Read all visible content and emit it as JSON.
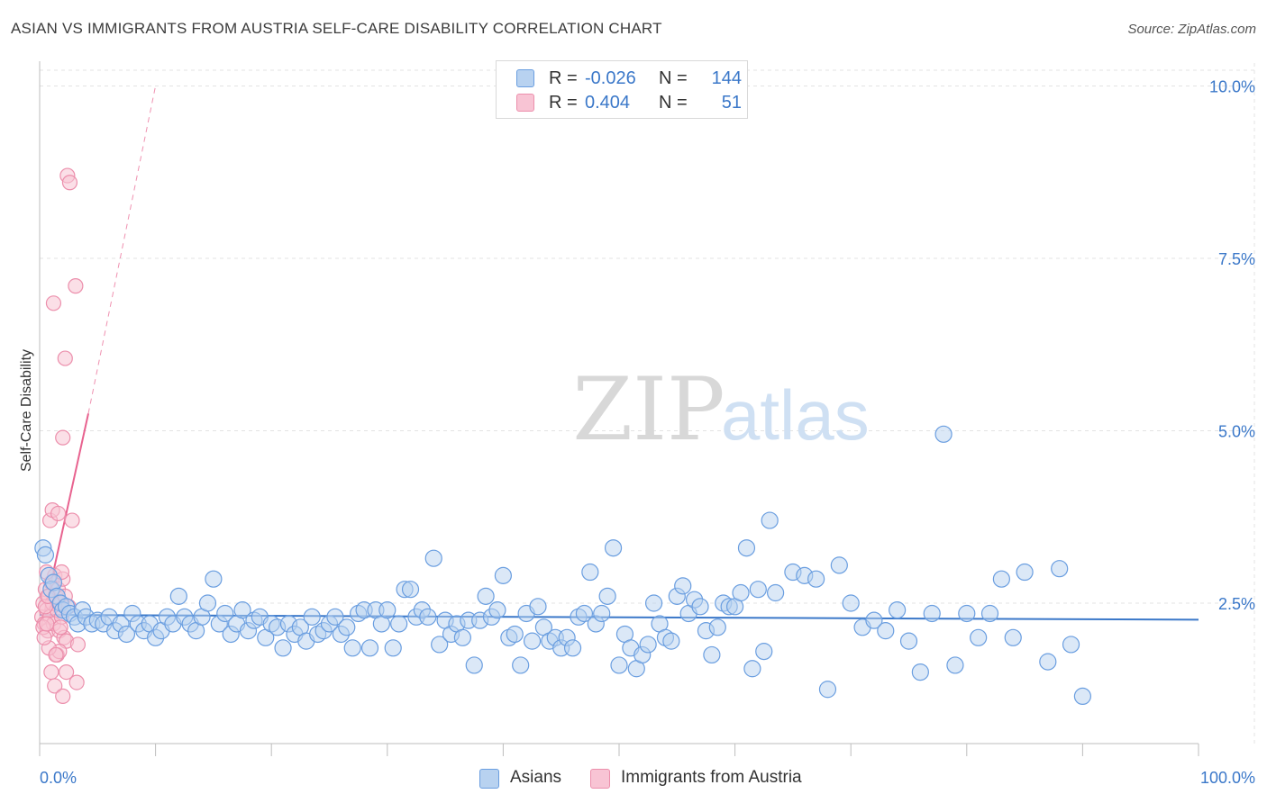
{
  "title": "ASIAN VS IMMIGRANTS FROM AUSTRIA SELF-CARE DISABILITY CORRELATION CHART",
  "source": "Source: ZipAtlas.com",
  "legend": {
    "r_label": "R =",
    "n_label": "N =",
    "rows": [
      {
        "r": "-0.026",
        "n": "144",
        "swatch_fill": "#b8d2f0",
        "swatch_stroke": "#6a9ee0"
      },
      {
        "r": "0.404",
        "n": "51",
        "swatch_fill": "#f8c4d4",
        "swatch_stroke": "#ec8fac"
      }
    ]
  },
  "bottom_legend": [
    "Asians",
    "Immigrants from Austria"
  ],
  "colors": {
    "blue": "#3b78c9",
    "blue_fill": "#b8d2f0",
    "blue_stroke": "#6a9ee0",
    "pink": "#e8628f",
    "pink_fill": "#f8c4d4",
    "pink_stroke": "#ec8fac",
    "grid": "#e3e3e3",
    "axis_label": "#3b78c9"
  },
  "chart_data": {
    "type": "scatter",
    "title": "ASIAN VS IMMIGRANTS FROM AUSTRIA SELF-CARE DISABILITY CORRELATION CHART",
    "xlabel": "",
    "ylabel": "Self-Care Disability",
    "xlim": [
      0,
      100
    ],
    "ylim": [
      0,
      10.5
    ],
    "x_tick_labels": [
      "0.0%",
      "100.0%"
    ],
    "y_ticks": [
      2.5,
      5.0,
      7.5,
      10.0
    ],
    "y_tick_labels": [
      "2.5%",
      "5.0%",
      "7.5%",
      "10.0%"
    ],
    "grid": true,
    "legend_position": "top-center",
    "watermark": "ZIPatlas",
    "series": [
      {
        "name": "Asians",
        "color": "#6a9ee0",
        "trend": {
          "x": [
            0,
            100
          ],
          "y": [
            2.33,
            2.26
          ],
          "style": "solid"
        },
        "points": [
          [
            0.3,
            3.3
          ],
          [
            0.5,
            3.2
          ],
          [
            0.8,
            2.9
          ],
          [
            1.0,
            2.7
          ],
          [
            1.2,
            2.8
          ],
          [
            1.5,
            2.6
          ],
          [
            1.8,
            2.5
          ],
          [
            2.0,
            2.4
          ],
          [
            2.3,
            2.45
          ],
          [
            2.6,
            2.35
          ],
          [
            3.0,
            2.3
          ],
          [
            3.3,
            2.2
          ],
          [
            3.7,
            2.4
          ],
          [
            4.0,
            2.3
          ],
          [
            4.5,
            2.2
          ],
          [
            5.0,
            2.25
          ],
          [
            5.5,
            2.2
          ],
          [
            6.0,
            2.3
          ],
          [
            6.5,
            2.1
          ],
          [
            7.0,
            2.2
          ],
          [
            7.5,
            2.05
          ],
          [
            8.0,
            2.35
          ],
          [
            8.5,
            2.2
          ],
          [
            9.0,
            2.1
          ],
          [
            9.5,
            2.2
          ],
          [
            10.0,
            2.0
          ],
          [
            10.5,
            2.1
          ],
          [
            11.0,
            2.3
          ],
          [
            11.5,
            2.2
          ],
          [
            12.0,
            2.6
          ],
          [
            12.5,
            2.3
          ],
          [
            13.0,
            2.2
          ],
          [
            13.5,
            2.1
          ],
          [
            14.0,
            2.3
          ],
          [
            14.5,
            2.5
          ],
          [
            15.0,
            2.85
          ],
          [
            15.5,
            2.2
          ],
          [
            16.0,
            2.35
          ],
          [
            16.5,
            2.05
          ],
          [
            17.0,
            2.2
          ],
          [
            17.5,
            2.4
          ],
          [
            18.0,
            2.1
          ],
          [
            18.5,
            2.25
          ],
          [
            19.0,
            2.3
          ],
          [
            19.5,
            2.0
          ],
          [
            20.0,
            2.2
          ],
          [
            20.5,
            2.15
          ],
          [
            21.0,
            1.85
          ],
          [
            21.5,
            2.2
          ],
          [
            22.0,
            2.05
          ],
          [
            22.5,
            2.15
          ],
          [
            23.0,
            1.95
          ],
          [
            23.5,
            2.3
          ],
          [
            24.0,
            2.05
          ],
          [
            24.5,
            2.1
          ],
          [
            25.0,
            2.2
          ],
          [
            25.5,
            2.3
          ],
          [
            26.0,
            2.05
          ],
          [
            26.5,
            2.15
          ],
          [
            27.0,
            1.85
          ],
          [
            27.5,
            2.35
          ],
          [
            28.0,
            2.4
          ],
          [
            28.5,
            1.85
          ],
          [
            29.0,
            2.4
          ],
          [
            29.5,
            2.2
          ],
          [
            30.0,
            2.4
          ],
          [
            30.5,
            1.85
          ],
          [
            31.0,
            2.2
          ],
          [
            31.5,
            2.7
          ],
          [
            32.0,
            2.7
          ],
          [
            32.5,
            2.3
          ],
          [
            33.0,
            2.4
          ],
          [
            33.5,
            2.3
          ],
          [
            34.0,
            3.15
          ],
          [
            34.5,
            1.9
          ],
          [
            35.0,
            2.25
          ],
          [
            35.5,
            2.05
          ],
          [
            36.0,
            2.2
          ],
          [
            36.5,
            2.0
          ],
          [
            37.0,
            2.25
          ],
          [
            37.5,
            1.6
          ],
          [
            38.0,
            2.25
          ],
          [
            38.5,
            2.6
          ],
          [
            39.0,
            2.3
          ],
          [
            39.5,
            2.4
          ],
          [
            40.0,
            2.9
          ],
          [
            40.5,
            2.0
          ],
          [
            41.0,
            2.05
          ],
          [
            41.5,
            1.6
          ],
          [
            42.0,
            2.35
          ],
          [
            42.5,
            1.95
          ],
          [
            43.0,
            2.45
          ],
          [
            43.5,
            2.15
          ],
          [
            44.0,
            1.95
          ],
          [
            44.5,
            2.0
          ],
          [
            45.0,
            1.85
          ],
          [
            45.5,
            2.0
          ],
          [
            46.0,
            1.85
          ],
          [
            46.5,
            2.3
          ],
          [
            47.0,
            2.35
          ],
          [
            47.5,
            2.95
          ],
          [
            48.0,
            2.2
          ],
          [
            48.5,
            2.35
          ],
          [
            49.0,
            2.6
          ],
          [
            49.5,
            3.3
          ],
          [
            50.0,
            1.6
          ],
          [
            50.5,
            2.05
          ],
          [
            51.0,
            1.85
          ],
          [
            51.5,
            1.55
          ],
          [
            52.0,
            1.75
          ],
          [
            52.5,
            1.9
          ],
          [
            53.0,
            2.5
          ],
          [
            53.5,
            2.2
          ],
          [
            54.0,
            2.0
          ],
          [
            54.5,
            1.95
          ],
          [
            55.0,
            2.6
          ],
          [
            55.5,
            2.75
          ],
          [
            56.0,
            2.35
          ],
          [
            56.5,
            2.55
          ],
          [
            57.0,
            2.45
          ],
          [
            57.5,
            2.1
          ],
          [
            58.0,
            1.75
          ],
          [
            58.5,
            2.15
          ],
          [
            59.0,
            2.5
          ],
          [
            59.5,
            2.45
          ],
          [
            60.0,
            2.45
          ],
          [
            60.5,
            2.65
          ],
          [
            61.0,
            3.3
          ],
          [
            61.5,
            1.55
          ],
          [
            62.0,
            2.7
          ],
          [
            62.5,
            1.8
          ],
          [
            63.0,
            3.7
          ],
          [
            63.5,
            2.65
          ],
          [
            65.0,
            2.95
          ],
          [
            66.0,
            2.9
          ],
          [
            67.0,
            2.85
          ],
          [
            68.0,
            1.25
          ],
          [
            69.0,
            3.05
          ],
          [
            70.0,
            2.5
          ],
          [
            71.0,
            2.15
          ],
          [
            72.0,
            2.25
          ],
          [
            73.0,
            2.1
          ],
          [
            74.0,
            2.4
          ],
          [
            75.0,
            1.95
          ],
          [
            76.0,
            1.5
          ],
          [
            77.0,
            2.35
          ],
          [
            78.0,
            4.95
          ],
          [
            79.0,
            1.6
          ],
          [
            80.0,
            2.35
          ],
          [
            81.0,
            2.0
          ],
          [
            82.0,
            2.35
          ],
          [
            83.0,
            2.85
          ],
          [
            84.0,
            2.0
          ],
          [
            85.0,
            2.95
          ],
          [
            87.0,
            1.65
          ],
          [
            89.0,
            1.9
          ],
          [
            90.0,
            1.15
          ],
          [
            88.0,
            3.0
          ]
        ]
      },
      {
        "name": "Immigrants from Austria",
        "color": "#ec8fac",
        "trend": {
          "x": [
            0,
            4.2
          ],
          "y": [
            2.05,
            5.25
          ],
          "style": "solid",
          "extension_to": [
            10.0,
            10.0
          ],
          "extension_style": "dashed"
        },
        "points": [
          [
            0.2,
            2.3
          ],
          [
            0.3,
            2.5
          ],
          [
            0.4,
            2.2
          ],
          [
            0.5,
            2.7
          ],
          [
            0.6,
            2.4
          ],
          [
            0.7,
            2.1
          ],
          [
            0.8,
            2.6
          ],
          [
            0.9,
            2.3
          ],
          [
            1.0,
            2.8
          ],
          [
            1.1,
            2.5
          ],
          [
            1.2,
            2.2
          ],
          [
            1.3,
            2.9
          ],
          [
            1.4,
            2.6
          ],
          [
            1.5,
            2.4
          ],
          [
            1.6,
            2.7
          ],
          [
            1.7,
            2.1
          ],
          [
            1.8,
            2.5
          ],
          [
            1.9,
            2.3
          ],
          [
            2.0,
            2.85
          ],
          [
            2.1,
            2.0
          ],
          [
            2.2,
            2.6
          ],
          [
            2.3,
            1.95
          ],
          [
            0.3,
            2.15
          ],
          [
            0.5,
            2.45
          ],
          [
            0.7,
            2.6
          ],
          [
            0.9,
            3.7
          ],
          [
            1.1,
            3.85
          ],
          [
            1.2,
            6.85
          ],
          [
            1.5,
            1.75
          ],
          [
            1.7,
            1.8
          ],
          [
            2.0,
            4.9
          ],
          [
            2.2,
            6.05
          ],
          [
            2.4,
            8.7
          ],
          [
            2.6,
            8.6
          ],
          [
            2.8,
            3.7
          ],
          [
            3.1,
            7.1
          ],
          [
            3.2,
            1.35
          ],
          [
            3.3,
            1.9
          ],
          [
            1.0,
            1.5
          ],
          [
            1.3,
            1.3
          ],
          [
            2.0,
            1.15
          ],
          [
            2.3,
            1.5
          ],
          [
            0.8,
            1.85
          ],
          [
            0.6,
            2.95
          ],
          [
            1.6,
            3.8
          ],
          [
            1.9,
            2.95
          ],
          [
            2.5,
            2.45
          ],
          [
            0.4,
            2.0
          ],
          [
            0.6,
            2.2
          ],
          [
            1.4,
            1.75
          ],
          [
            1.8,
            2.15
          ]
        ]
      }
    ]
  }
}
